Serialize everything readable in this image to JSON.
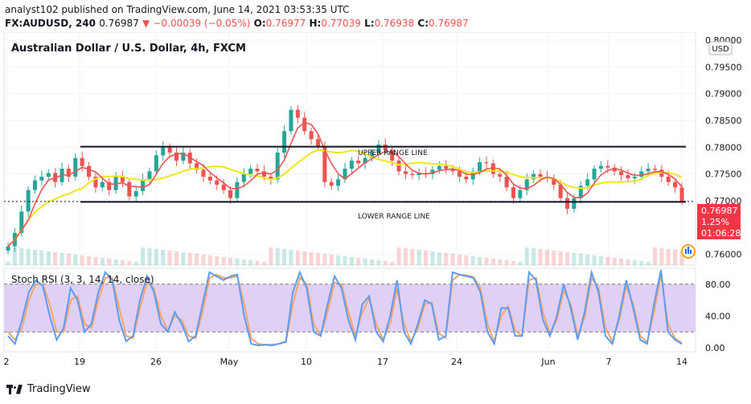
{
  "header": {
    "published": "analyst102 published on TradingView.com, June 14, 2021 03:53:35 UTC",
    "symbol": "FX:AUDUSD, 240",
    "last": "0.76987",
    "change": "−0.00039 (−0.05%)",
    "change_arrow": "▼",
    "open_label": "O:",
    "open": "0.76977",
    "high_label": "H:",
    "high": "0.77039",
    "low_label": "L:",
    "low": "0.76938",
    "close_label": "C:",
    "close": "0.76987"
  },
  "chart_title": "Australian Dollar / U.S. Dollar, 4h, FXCM",
  "currency_badge": "USD",
  "price_label": {
    "value": "0.76987",
    "percent": "1.25%",
    "countdown": "01:06:28"
  },
  "annotations": {
    "upper": "UPPER RANGE LINE",
    "lower": "LOWER RANGE LINE"
  },
  "rsi_title": "Stoch RSI (3, 3, 14, 14, close)",
  "brand": "TradingView",
  "colors": {
    "up": "#26a69a",
    "down": "#ef5350",
    "ma_fast": "#ef5350",
    "ma_slow": "#f0e61e",
    "k": "#5b9cf6",
    "d": "#f4a56a",
    "rsi_band": "#e1d0f5",
    "accent": "#f7a21b"
  },
  "chart_data": [
    {
      "type": "candlestick",
      "title": "Australian Dollar / U.S. Dollar, 4h, FXCM",
      "y_ticks": [
        "0.80000",
        "0.79500",
        "0.79000",
        "0.78500",
        "0.78000",
        "0.77500",
        "0.77000",
        "0.76000"
      ],
      "ylim": [
        0.758,
        0.8015
      ],
      "x_ticks": [
        "2",
        "19",
        "26",
        "May",
        "10",
        "17",
        "24",
        "Jun",
        "7",
        "14"
      ],
      "upper_range_line": 0.7801,
      "lower_range_line": 0.7698,
      "close_series": [
        0.7615,
        0.764,
        0.768,
        0.772,
        0.7738,
        0.7745,
        0.7752,
        0.7735,
        0.776,
        0.7745,
        0.778,
        0.7765,
        0.7745,
        0.7725,
        0.7735,
        0.772,
        0.7745,
        0.7735,
        0.7708,
        0.7718,
        0.774,
        0.7755,
        0.7785,
        0.78,
        0.779,
        0.7775,
        0.779,
        0.777,
        0.7758,
        0.7745,
        0.7738,
        0.773,
        0.772,
        0.7705,
        0.7735,
        0.775,
        0.776,
        0.7755,
        0.7745,
        0.774,
        0.779,
        0.783,
        0.787,
        0.7855,
        0.783,
        0.7815,
        0.78,
        0.7735,
        0.7728,
        0.774,
        0.776,
        0.7775,
        0.777,
        0.778,
        0.779,
        0.7805,
        0.7795,
        0.7775,
        0.7755,
        0.775,
        0.7748,
        0.7752,
        0.775,
        0.7758,
        0.7765,
        0.776,
        0.7755,
        0.7745,
        0.774,
        0.7755,
        0.7772,
        0.777,
        0.775,
        0.7745,
        0.7725,
        0.7705,
        0.772,
        0.774,
        0.775,
        0.7745,
        0.7742,
        0.773,
        0.7705,
        0.7685,
        0.7705,
        0.7728,
        0.774,
        0.776,
        0.7765,
        0.7762,
        0.7755,
        0.7748,
        0.7742,
        0.7745,
        0.7755,
        0.776,
        0.7758,
        0.7745,
        0.7735,
        0.7725,
        0.7699
      ],
      "ma_fast_label": "red moving average",
      "ma_slow_label": "yellow moving average",
      "last_price": 0.76987
    },
    {
      "type": "line",
      "title": "Stoch RSI (3, 3, 14, 14, close)",
      "y_ticks": [
        "80.00",
        "40.00",
        "0.00"
      ],
      "ylim": [
        -5,
        100
      ],
      "band": [
        20,
        80
      ],
      "series": [
        {
          "values": [
            15,
            5,
            35,
            70,
            85,
            78,
            40,
            10,
            25,
            75,
            60,
            20,
            30,
            70,
            95,
            85,
            35,
            8,
            15,
            60,
            90,
            70,
            30,
            20,
            45,
            30,
            8,
            15,
            55,
            95,
            90,
            85,
            90,
            92,
            40,
            5,
            3,
            4,
            3,
            5,
            8,
            70,
            95,
            75,
            20,
            15,
            55,
            90,
            75,
            35,
            10,
            55,
            65,
            20,
            8,
            40,
            85,
            20,
            5,
            30,
            60,
            55,
            10,
            15,
            95,
            92,
            90,
            88,
            70,
            20,
            5,
            50,
            50,
            15,
            15,
            95,
            85,
            35,
            15,
            40,
            80,
            50,
            10,
            45,
            95,
            70,
            15,
            5,
            40,
            85,
            50,
            10,
            5,
            55,
            98,
            20,
            10,
            5
          ]
        },
        {
          "values": [
            20,
            10,
            25,
            60,
            80,
            80,
            55,
            20,
            20,
            60,
            65,
            30,
            25,
            60,
            88,
            88,
            50,
            15,
            12,
            50,
            82,
            75,
            40,
            22,
            40,
            35,
            15,
            12,
            45,
            88,
            92,
            88,
            88,
            90,
            55,
            12,
            5,
            4,
            4,
            5,
            7,
            55,
            88,
            80,
            30,
            15,
            45,
            82,
            80,
            45,
            15,
            45,
            62,
            30,
            10,
            30,
            75,
            30,
            8,
            25,
            55,
            57,
            18,
            13,
            85,
            92,
            91,
            89,
            75,
            30,
            8,
            40,
            52,
            22,
            15,
            85,
            88,
            45,
            18,
            35,
            72,
            55,
            15,
            38,
            88,
            75,
            25,
            8,
            35,
            78,
            55,
            15,
            7,
            45,
            92,
            30,
            12,
            6
          ]
        }
      ]
    }
  ]
}
